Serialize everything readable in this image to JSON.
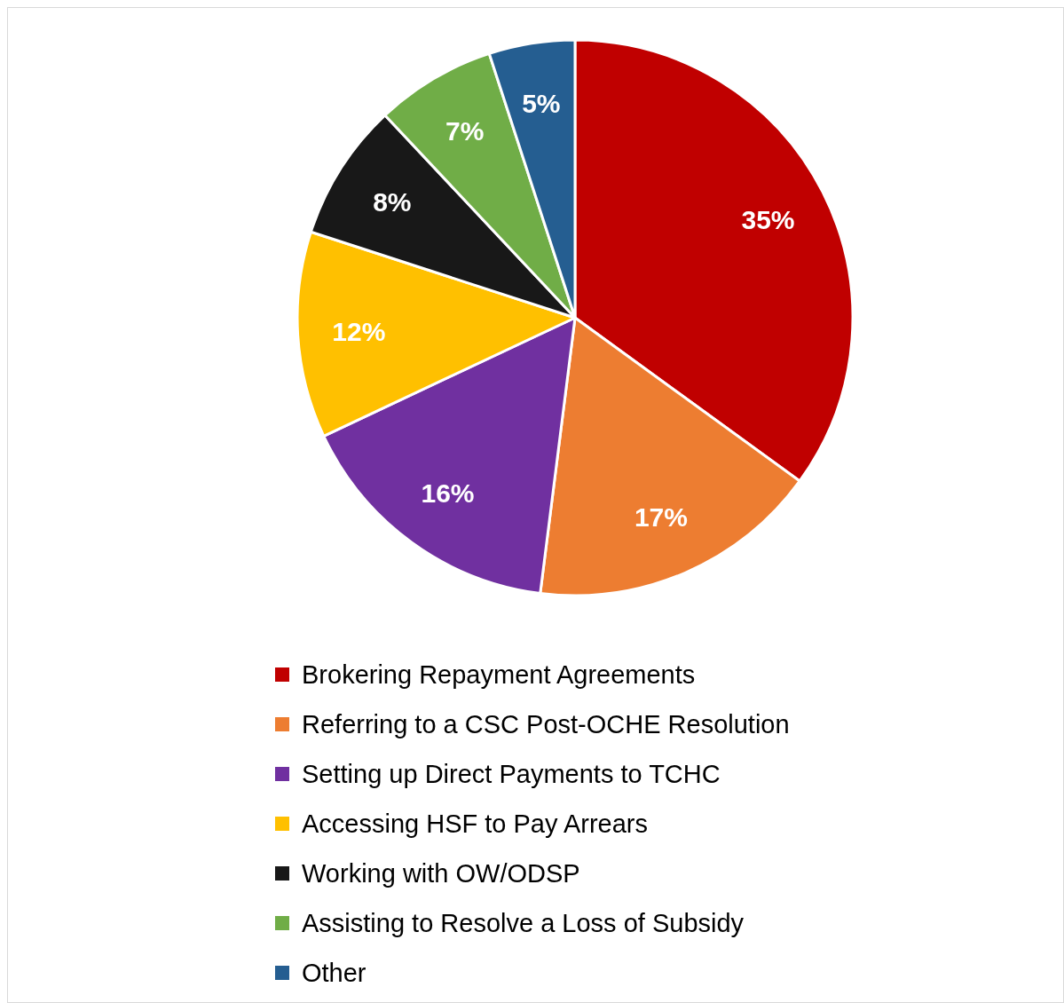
{
  "chart_data": {
    "type": "pie",
    "categories": [
      "Brokering Repayment Agreements",
      "Referring to a CSC Post-OCHE Resolution",
      "Setting up Direct Payments to TCHC",
      "Accessing HSF to Pay Arrears",
      "Working with OW/ODSP",
      "Assisting to Resolve a Loss of Subsidy",
      "Other"
    ],
    "values": [
      35,
      17,
      16,
      12,
      8,
      7,
      5
    ],
    "value_labels": [
      "35%",
      "17%",
      "16%",
      "12%",
      "8%",
      "7%",
      "5%"
    ],
    "colors": [
      "#c00000",
      "#ed7d31",
      "#7030a0",
      "#ffc000",
      "#181818",
      "#70ad47",
      "#255e91"
    ],
    "legend": "bottom"
  }
}
